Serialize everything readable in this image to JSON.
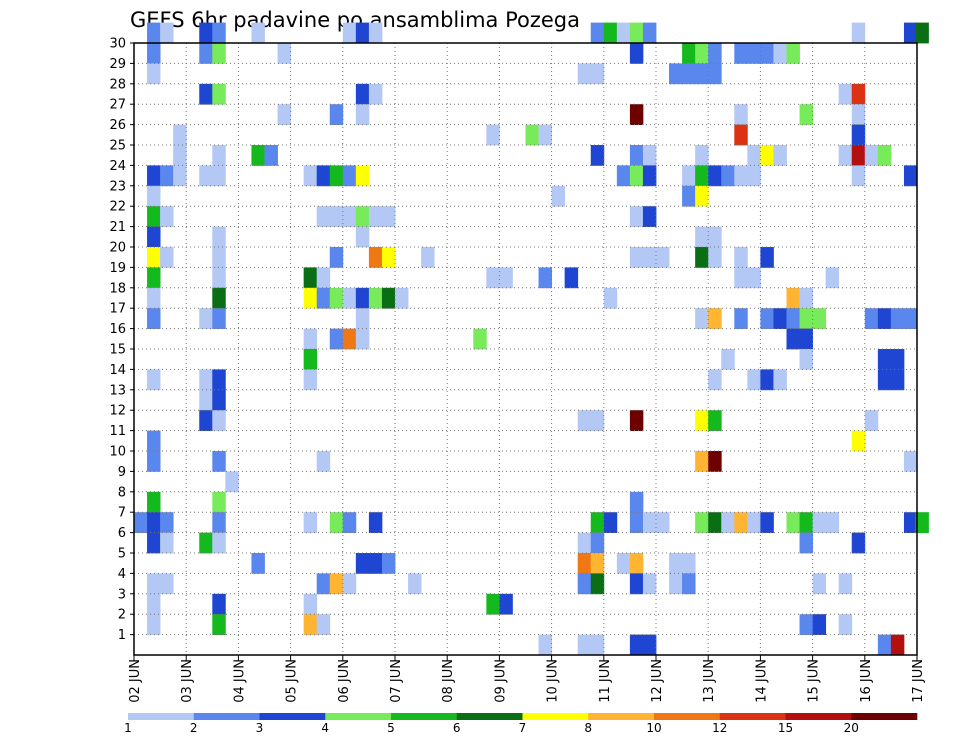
{
  "chart_data": {
    "type": "heatmap",
    "title": "GEFS 6hr padavine po ansamblima Pozega",
    "x_ticks": [
      "02 JUN",
      "03 JUN",
      "04 JUN",
      "05 JUN",
      "06 JUN",
      "07 JUN",
      "08 JUN",
      "09 JUN",
      "10 JUN",
      "11 JUN",
      "12 JUN",
      "13 JUN",
      "14 JUN",
      "15 JUN",
      "16 JUN",
      "17 JUN"
    ],
    "xlim": [
      "02 JUN 00",
      "17 JUN 00"
    ],
    "steps_per_day": 4,
    "y_ticks": [
      1,
      2,
      3,
      4,
      5,
      6,
      7,
      8,
      9,
      10,
      11,
      12,
      13,
      14,
      15,
      16,
      17,
      18,
      19,
      20,
      21,
      22,
      23,
      24,
      25,
      26,
      27,
      28,
      29,
      30
    ],
    "ylim": [
      0,
      30
    ],
    "grid": true,
    "colorbar": {
      "labels": [
        "1",
        "2",
        "3",
        "4",
        "5",
        "6",
        "7",
        "8",
        "10",
        "12",
        "15",
        "20"
      ],
      "colors": [
        "#b4c8f5",
        "#5a87ee",
        "#1e46d2",
        "#78eb5a",
        "#14b91e",
        "#0a6e14",
        "#ffff00",
        "#ffb432",
        "#f07814",
        "#dc3214",
        "#b40f0f",
        "#6e0000"
      ]
    },
    "cells_note": "each cell = [member, day-offset from 02 JUN (6h step = 0.25), color class 1..12]",
    "cells": [
      [
        30,
        0.25,
        2
      ],
      [
        30,
        0.5,
        1
      ],
      [
        30,
        1.25,
        3
      ],
      [
        30,
        1.5,
        2
      ],
      [
        30,
        2.25,
        1
      ],
      [
        30,
        4,
        1
      ],
      [
        30,
        4.25,
        3
      ],
      [
        30,
        4.5,
        1
      ],
      [
        30,
        8.75,
        2
      ],
      [
        30,
        9,
        5
      ],
      [
        30,
        9.25,
        1
      ],
      [
        30,
        9.5,
        4
      ],
      [
        30,
        9.75,
        2
      ],
      [
        30,
        13.75,
        1
      ],
      [
        30,
        14.75,
        3
      ],
      [
        30,
        14.97,
        6
      ],
      [
        29,
        0.25,
        2
      ],
      [
        29,
        1.25,
        2
      ],
      [
        29,
        1.5,
        4
      ],
      [
        29,
        2.75,
        1
      ],
      [
        29,
        9.5,
        3
      ],
      [
        29,
        10.5,
        5
      ],
      [
        29,
        10.75,
        4
      ],
      [
        29,
        11,
        2
      ],
      [
        29,
        11.5,
        2
      ],
      [
        29,
        11.75,
        2
      ],
      [
        29,
        12,
        2
      ],
      [
        29,
        12.25,
        1
      ],
      [
        29,
        12.5,
        4
      ],
      [
        28,
        0.25,
        1
      ],
      [
        28,
        8.5,
        1
      ],
      [
        28,
        8.75,
        1
      ],
      [
        28,
        10.25,
        2
      ],
      [
        28,
        10.5,
        2
      ],
      [
        28,
        10.75,
        2
      ],
      [
        28,
        11,
        2
      ],
      [
        27,
        1.25,
        3
      ],
      [
        27,
        1.5,
        4
      ],
      [
        27,
        4.25,
        3
      ],
      [
        27,
        4.5,
        1
      ],
      [
        27,
        13.5,
        1
      ],
      [
        27,
        13.75,
        10
      ],
      [
        26,
        2.75,
        1
      ],
      [
        26,
        3.75,
        2
      ],
      [
        26,
        4.25,
        1
      ],
      [
        26,
        9.5,
        12
      ],
      [
        26,
        11.5,
        1
      ],
      [
        26,
        12.75,
        4
      ],
      [
        26,
        13.75,
        1
      ],
      [
        25,
        0.75,
        1
      ],
      [
        25,
        6.75,
        1
      ],
      [
        25,
        7.5,
        4
      ],
      [
        25,
        7.75,
        1
      ],
      [
        25,
        11.5,
        10
      ],
      [
        25,
        13.75,
        3
      ],
      [
        24,
        0.75,
        1
      ],
      [
        24,
        1.5,
        1
      ],
      [
        24,
        2.25,
        5
      ],
      [
        24,
        2.5,
        2
      ],
      [
        24,
        8.75,
        3
      ],
      [
        24,
        9.5,
        2
      ],
      [
        24,
        9.75,
        1
      ],
      [
        24,
        10.75,
        1
      ],
      [
        24,
        11.75,
        1
      ],
      [
        24,
        12,
        7
      ],
      [
        24,
        12.25,
        1
      ],
      [
        24,
        13.5,
        1
      ],
      [
        24,
        13.75,
        11
      ],
      [
        24,
        14,
        1
      ],
      [
        24,
        14.25,
        4
      ],
      [
        23,
        0.25,
        3
      ],
      [
        23,
        0.5,
        2
      ],
      [
        23,
        0.75,
        1
      ],
      [
        23,
        1.25,
        1
      ],
      [
        23,
        1.5,
        1
      ],
      [
        23,
        3.25,
        1
      ],
      [
        23,
        3.5,
        3
      ],
      [
        23,
        3.75,
        5
      ],
      [
        23,
        4,
        2
      ],
      [
        23,
        4.25,
        7
      ],
      [
        23,
        9.25,
        2
      ],
      [
        23,
        9.5,
        4
      ],
      [
        23,
        9.75,
        3
      ],
      [
        23,
        10.5,
        1
      ],
      [
        23,
        10.75,
        5
      ],
      [
        23,
        11,
        3
      ],
      [
        23,
        11.25,
        2
      ],
      [
        23,
        11.5,
        1
      ],
      [
        23,
        11.75,
        1
      ],
      [
        23,
        13.75,
        1
      ],
      [
        23,
        14.75,
        3
      ],
      [
        22,
        0.25,
        1
      ],
      [
        22,
        8,
        1
      ],
      [
        22,
        10.5,
        2
      ],
      [
        22,
        10.75,
        7
      ],
      [
        21,
        0.25,
        5
      ],
      [
        21,
        0.5,
        1
      ],
      [
        21,
        3.5,
        1
      ],
      [
        21,
        3.75,
        1
      ],
      [
        21,
        4,
        1
      ],
      [
        21,
        4.25,
        4
      ],
      [
        21,
        4.5,
        1
      ],
      [
        21,
        4.75,
        1
      ],
      [
        21,
        9.5,
        1
      ],
      [
        21,
        9.75,
        3
      ],
      [
        20,
        0.25,
        3
      ],
      [
        20,
        1.5,
        1
      ],
      [
        20,
        10.75,
        1
      ],
      [
        20,
        11,
        1
      ],
      [
        20,
        4.25,
        1
      ],
      [
        19,
        0.25,
        7
      ],
      [
        19,
        0.5,
        1
      ],
      [
        19,
        1.5,
        1
      ],
      [
        19,
        3.75,
        2
      ],
      [
        19,
        4.5,
        9
      ],
      [
        19,
        4.75,
        7
      ],
      [
        19,
        5.5,
        1
      ],
      [
        19,
        9.5,
        1
      ],
      [
        19,
        9.75,
        1
      ],
      [
        19,
        10,
        1
      ],
      [
        19,
        10.75,
        6
      ],
      [
        19,
        11,
        1
      ],
      [
        19,
        11.5,
        1
      ],
      [
        19,
        12,
        3
      ],
      [
        18,
        0.25,
        5
      ],
      [
        18,
        1.5,
        1
      ],
      [
        18,
        3.25,
        6
      ],
      [
        18,
        3.5,
        1
      ],
      [
        18,
        6.75,
        1
      ],
      [
        18,
        7,
        1
      ],
      [
        18,
        7.75,
        2
      ],
      [
        18,
        8.25,
        3
      ],
      [
        18,
        11.5,
        1
      ],
      [
        18,
        11.75,
        1
      ],
      [
        18,
        13.25,
        1
      ],
      [
        17,
        0.25,
        1
      ],
      [
        17,
        1.5,
        6
      ],
      [
        17,
        3.25,
        7
      ],
      [
        17,
        3.5,
        2
      ],
      [
        17,
        3.75,
        4
      ],
      [
        17,
        4,
        1
      ],
      [
        17,
        4.25,
        3
      ],
      [
        17,
        4.5,
        4
      ],
      [
        17,
        4.75,
        6
      ],
      [
        17,
        5,
        1
      ],
      [
        17,
        9,
        1
      ],
      [
        17,
        12.5,
        8
      ],
      [
        17,
        12.75,
        1
      ],
      [
        16,
        0.25,
        2
      ],
      [
        16,
        1.25,
        1
      ],
      [
        16,
        1.5,
        2
      ],
      [
        16,
        4.25,
        1
      ],
      [
        16,
        10.75,
        1
      ],
      [
        16,
        11,
        8
      ],
      [
        16,
        11.5,
        2
      ],
      [
        16,
        12,
        2
      ],
      [
        16,
        12.25,
        3
      ],
      [
        16,
        12.5,
        2
      ],
      [
        16,
        12.75,
        4
      ],
      [
        16,
        13,
        4
      ],
      [
        16,
        14,
        2
      ],
      [
        16,
        14.25,
        3
      ],
      [
        16,
        14.5,
        2
      ],
      [
        16,
        14.75,
        2
      ],
      [
        15,
        3.25,
        1
      ],
      [
        15,
        3.75,
        2
      ],
      [
        15,
        4,
        9
      ],
      [
        15,
        4.25,
        1
      ],
      [
        15,
        6.5,
        4
      ],
      [
        15,
        12.5,
        3
      ],
      [
        15,
        12.75,
        3
      ],
      [
        14,
        3.25,
        5
      ],
      [
        14,
        11.25,
        1
      ],
      [
        14,
        12.75,
        1
      ],
      [
        14,
        14.25,
        3
      ],
      [
        14,
        14.5,
        3
      ],
      [
        13,
        0.25,
        1
      ],
      [
        13,
        1.25,
        1
      ],
      [
        13,
        1.5,
        3
      ],
      [
        13,
        3.25,
        1
      ],
      [
        13,
        11,
        1
      ],
      [
        13,
        11.75,
        1
      ],
      [
        13,
        12,
        3
      ],
      [
        13,
        12.25,
        1
      ],
      [
        13,
        14.25,
        3
      ],
      [
        13,
        14.5,
        3
      ],
      [
        12,
        1.25,
        1
      ],
      [
        12,
        1.5,
        3
      ],
      [
        11,
        1.25,
        3
      ],
      [
        11,
        1.5,
        1
      ],
      [
        11,
        8.5,
        1
      ],
      [
        11,
        8.75,
        1
      ],
      [
        11,
        9.5,
        12
      ],
      [
        11,
        10.75,
        7
      ],
      [
        11,
        11,
        5
      ],
      [
        11,
        14,
        1
      ],
      [
        10,
        0.25,
        2
      ],
      [
        10,
        13.75,
        7
      ],
      [
        9,
        0.25,
        2
      ],
      [
        9,
        1.5,
        2
      ],
      [
        9,
        3.5,
        1
      ],
      [
        9,
        10.75,
        8
      ],
      [
        9,
        11,
        12
      ],
      [
        9,
        14.75,
        1
      ],
      [
        8,
        1.75,
        1
      ],
      [
        7,
        0.25,
        5
      ],
      [
        7,
        1.5,
        4
      ],
      [
        7,
        9.5,
        2
      ],
      [
        6,
        0.0,
        2
      ],
      [
        6,
        0.25,
        3
      ],
      [
        6,
        0.5,
        2
      ],
      [
        6,
        1.5,
        2
      ],
      [
        6,
        3.25,
        1
      ],
      [
        6,
        3.75,
        4
      ],
      [
        6,
        4,
        2
      ],
      [
        6,
        4.5,
        3
      ],
      [
        6,
        8.75,
        5
      ],
      [
        6,
        9,
        3
      ],
      [
        6,
        9.5,
        2
      ],
      [
        6,
        9.75,
        1
      ],
      [
        6,
        10,
        1
      ],
      [
        6,
        10.75,
        4
      ],
      [
        6,
        11,
        6
      ],
      [
        6,
        11.25,
        1
      ],
      [
        6,
        11.5,
        8
      ],
      [
        6,
        11.75,
        1
      ],
      [
        6,
        12,
        3
      ],
      [
        6,
        12.5,
        4
      ],
      [
        6,
        12.75,
        5
      ],
      [
        6,
        13,
        1
      ],
      [
        6,
        13.25,
        1
      ],
      [
        6,
        14.75,
        3
      ],
      [
        6,
        14.97,
        5
      ],
      [
        5,
        0.25,
        3
      ],
      [
        5,
        0.5,
        1
      ],
      [
        5,
        1.25,
        5
      ],
      [
        5,
        1.5,
        1
      ],
      [
        5,
        8.5,
        1
      ],
      [
        5,
        8.75,
        2
      ],
      [
        5,
        12.75,
        2
      ],
      [
        5,
        13.75,
        3
      ],
      [
        4,
        2.25,
        2
      ],
      [
        4,
        4.25,
        3
      ],
      [
        4,
        4.5,
        3
      ],
      [
        4,
        4.75,
        2
      ],
      [
        4,
        8.5,
        9
      ],
      [
        4,
        8.75,
        8
      ],
      [
        4,
        9.25,
        1
      ],
      [
        4,
        9.5,
        8
      ],
      [
        4,
        10.25,
        1
      ],
      [
        4,
        10.5,
        1
      ],
      [
        3,
        0.25,
        1
      ],
      [
        3,
        0.5,
        1
      ],
      [
        3,
        3.5,
        2
      ],
      [
        3,
        3.75,
        8
      ],
      [
        3,
        4,
        1
      ],
      [
        3,
        5.25,
        1
      ],
      [
        3,
        8.5,
        2
      ],
      [
        3,
        8.75,
        6
      ],
      [
        3,
        9.5,
        3
      ],
      [
        3,
        9.75,
        1
      ],
      [
        3,
        10.25,
        1
      ],
      [
        3,
        10.5,
        2
      ],
      [
        3,
        13,
        1
      ],
      [
        3,
        13.5,
        1
      ],
      [
        2,
        0.25,
        1
      ],
      [
        2,
        1.5,
        3
      ],
      [
        2,
        3.25,
        1
      ],
      [
        2,
        6.75,
        5
      ],
      [
        2,
        7,
        3
      ],
      [
        1,
        0.25,
        1
      ],
      [
        1,
        1.5,
        5
      ],
      [
        1,
        3.25,
        8
      ],
      [
        1,
        3.5,
        1
      ],
      [
        1,
        12.75,
        2
      ],
      [
        1,
        13,
        3
      ],
      [
        1,
        13.5,
        1
      ],
      [
        0,
        7.75,
        1
      ],
      [
        0,
        8.5,
        1
      ],
      [
        0,
        8.75,
        1
      ],
      [
        0,
        9.5,
        3
      ],
      [
        0,
        9.75,
        3
      ],
      [
        0,
        14.25,
        2
      ],
      [
        0,
        14.5,
        11
      ]
    ]
  }
}
